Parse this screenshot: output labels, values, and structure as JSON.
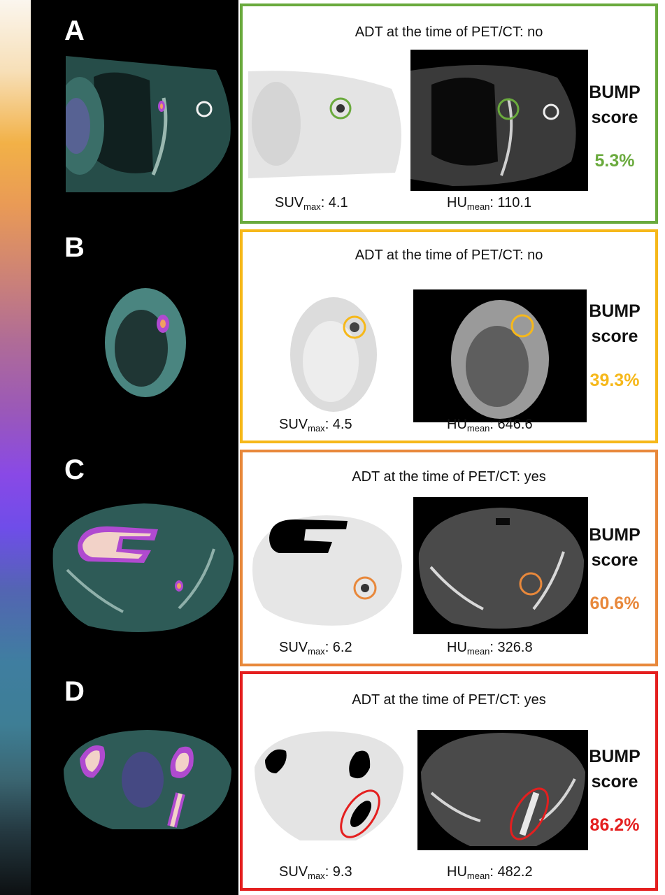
{
  "colorbar": {
    "name": "pet-intensity-colorbar"
  },
  "panels": [
    {
      "letter": "A",
      "adt": "ADT at the time of PET/CT: no",
      "suv_label": "SUV",
      "suv_sub": "max",
      "suv_value": ": 4.1",
      "hu_label": "HU",
      "hu_sub": "mean",
      "hu_value": ": 110.1",
      "bump_line1": "BUMP",
      "bump_line2": "score",
      "percent": "5.3%",
      "color": "#6aaa3d"
    },
    {
      "letter": "B",
      "adt": "ADT at the time of PET/CT: no",
      "suv_label": "SUV",
      "suv_sub": "max",
      "suv_value": ": 4.5",
      "hu_label": "HU",
      "hu_sub": "mean",
      "hu_value": ": 646.6",
      "bump_line1": "BUMP",
      "bump_line2": "score",
      "percent": "39.3%",
      "color": "#f6b81a"
    },
    {
      "letter": "C",
      "adt": "ADT at the time of PET/CT: yes",
      "suv_label": "SUV",
      "suv_sub": "max",
      "suv_value": ": 6.2",
      "hu_label": "HU",
      "hu_sub": "mean",
      "hu_value": ": 326.8",
      "bump_line1": "BUMP",
      "bump_line2": "score",
      "percent": "60.6%",
      "color": "#e8883b"
    },
    {
      "letter": "D",
      "adt": "ADT at the time of PET/CT: yes",
      "suv_label": "SUV",
      "suv_sub": "max",
      "suv_value": ": 9.3",
      "hu_label": "HU",
      "hu_sub": "mean",
      "hu_value": ": 482.2",
      "bump_line1": "BUMP",
      "bump_line2": "score",
      "percent": "86.2%",
      "color": "#e41f1f"
    }
  ]
}
